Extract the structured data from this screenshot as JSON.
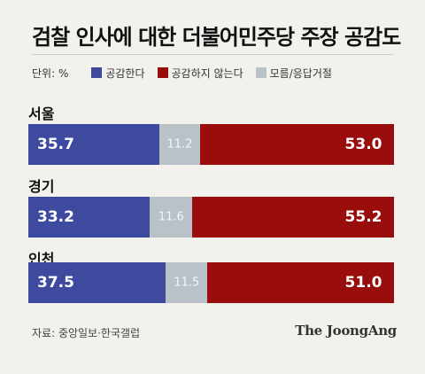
{
  "title": "검찰 인사에 대한 더불어민주당 주장 공감도",
  "unit_label": "단위: %",
  "legend": [
    {
      "label": "공감한다",
      "color": "#3d4a9e"
    },
    {
      "label": "공감하지 않는다",
      "color": "#9a0d0d"
    },
    {
      "label": "모름/응답거절",
      "color": "#b9c1c9"
    }
  ],
  "chart_data": {
    "type": "bar",
    "orientation": "horizontal-stacked",
    "categories": [
      "서울",
      "경기",
      "인천"
    ],
    "series": [
      {
        "name": "공감한다",
        "values": [
          35.7,
          33.2,
          37.5
        ],
        "labels": [
          "35.7",
          "33.2",
          "37.5"
        ]
      },
      {
        "name": "모름/응답거절",
        "values": [
          11.2,
          11.6,
          11.5
        ],
        "labels": [
          "11.2",
          "11.6",
          "11.5"
        ]
      },
      {
        "name": "공감하지 않는다",
        "values": [
          53.0,
          55.2,
          51.0
        ],
        "labels": [
          "53.0",
          "55.2",
          "51.0"
        ]
      }
    ],
    "xlim": [
      0,
      100
    ],
    "grid": false,
    "legend_position": "top-left"
  },
  "source": "자료: 중앙일보·한국갤럽",
  "brand": "The JoongAng"
}
